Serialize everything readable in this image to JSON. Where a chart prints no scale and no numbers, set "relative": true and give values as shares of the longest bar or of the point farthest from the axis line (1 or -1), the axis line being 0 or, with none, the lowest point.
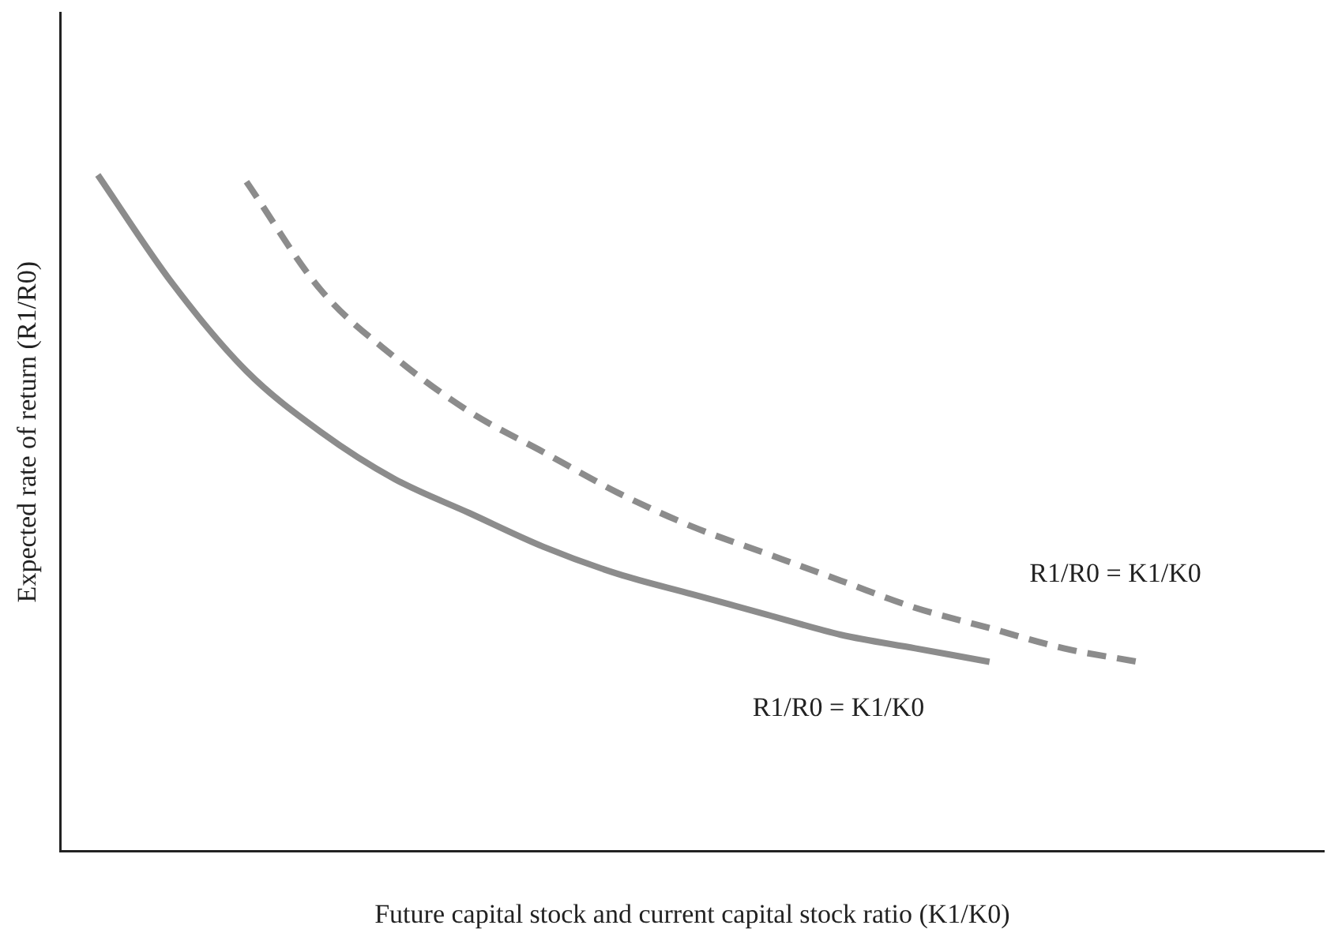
{
  "chart_data": {
    "type": "line",
    "xlabel": "Future capital stock and current capital stock ratio (K1/K0)",
    "ylabel": "Expected rate of return (R1/R0)",
    "relative": true,
    "legend": false,
    "grid": false,
    "marker": "none",
    "categories": [
      null,
      null,
      null,
      null,
      null,
      null,
      null,
      null,
      null,
      null,
      null,
      null,
      null,
      null,
      null,
      null,
      null
    ],
    "series": [
      {
        "name": "R1/R0 = K1/K0",
        "color": "#8c8c8c",
        "line_style": "solid",
        "values": [
          1,
          0.84,
          0.71,
          0.62,
          0.55,
          0.5,
          0.45,
          0.41,
          0.38,
          0.35,
          0.32,
          0.3,
          0.28,
          null,
          null,
          null,
          null
        ]
      },
      {
        "name": "R1/R0 = K1/K0",
        "color": "#8c8c8c",
        "line_style": "dashed",
        "values": [
          null,
          null,
          0.99,
          0.83,
          0.73,
          0.65,
          0.59,
          0.53,
          0.48,
          0.44,
          0.4,
          0.36,
          0.33,
          0.3,
          0.28,
          null,
          null
        ]
      }
    ]
  }
}
